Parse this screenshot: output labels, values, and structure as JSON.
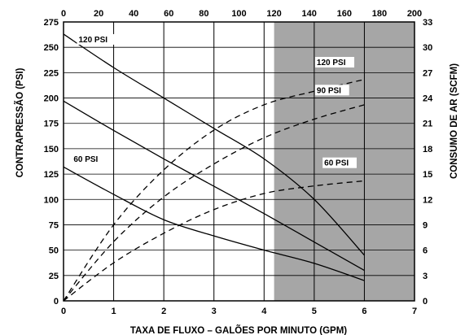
{
  "chart_data": {
    "type": "line",
    "xlabel": "TAXA DE FLUXO – GALÕES POR MINUTO (GPM)",
    "ylabel": "CONTRAPRESSÃO (PSI)",
    "y2label": "CONSUMO DE AR (SCFM)",
    "x_ticks": [
      "0",
      "1",
      "2",
      "3",
      "4",
      "5",
      "6",
      "7"
    ],
    "x2_ticks": [
      "0",
      "20",
      "40",
      "60",
      "80",
      "100",
      "120",
      "140",
      "160",
      "180",
      "200"
    ],
    "y_ticks": [
      "0",
      "25",
      "50",
      "75",
      "100",
      "125",
      "150",
      "175",
      "200",
      "225",
      "250",
      "275"
    ],
    "y2_ticks": [
      "0",
      "3",
      "6",
      "9",
      "12",
      "15",
      "18",
      "21",
      "24",
      "27",
      "30",
      "33"
    ],
    "xlim": [
      0,
      7
    ],
    "ylim": [
      0,
      275
    ],
    "x2lim": [
      0,
      200
    ],
    "y2lim": [
      0,
      33
    ],
    "grid": true,
    "shaded_region_x": [
      4.2,
      7
    ],
    "shaded_color": "#a6a6a6",
    "series": [
      {
        "name": "120 PSI",
        "kind": "back-pressure",
        "style": "solid",
        "x": [
          0,
          1,
          2,
          3,
          4,
          5,
          6
        ],
        "y": [
          263,
          230,
          200,
          170,
          140,
          100,
          45
        ]
      },
      {
        "kind": "back-pressure",
        "style": "solid",
        "x": [
          0,
          1,
          2,
          3,
          4,
          5,
          6
        ],
        "y": [
          197,
          168,
          140,
          113,
          86,
          58,
          30
        ]
      },
      {
        "name": "60 PSI",
        "kind": "back-pressure",
        "style": "solid",
        "x": [
          0,
          1,
          2,
          3,
          4,
          5,
          6
        ],
        "y": [
          132,
          105,
          80,
          64,
          50,
          37,
          20
        ]
      },
      {
        "name": "120 PSI",
        "kind": "air-consumption",
        "style": "dashed",
        "x": [
          0,
          1,
          2,
          3,
          4,
          5,
          6
        ],
        "y2": [
          0,
          9,
          15.5,
          20.2,
          23.2,
          24.8,
          26.2
        ]
      },
      {
        "name": "90 PSI",
        "kind": "air-consumption",
        "style": "dashed",
        "x": [
          0,
          1,
          2,
          3,
          4,
          5,
          6
        ],
        "y2": [
          0,
          7,
          12.3,
          16.2,
          19.3,
          21.5,
          23.2
        ]
      },
      {
        "name": "60 PSI",
        "kind": "air-consumption",
        "style": "dashed",
        "x": [
          0,
          1,
          2,
          3,
          4,
          5,
          6
        ],
        "y2": [
          0,
          4.5,
          8,
          10.8,
          12.7,
          13.6,
          14.2
        ]
      }
    ]
  }
}
